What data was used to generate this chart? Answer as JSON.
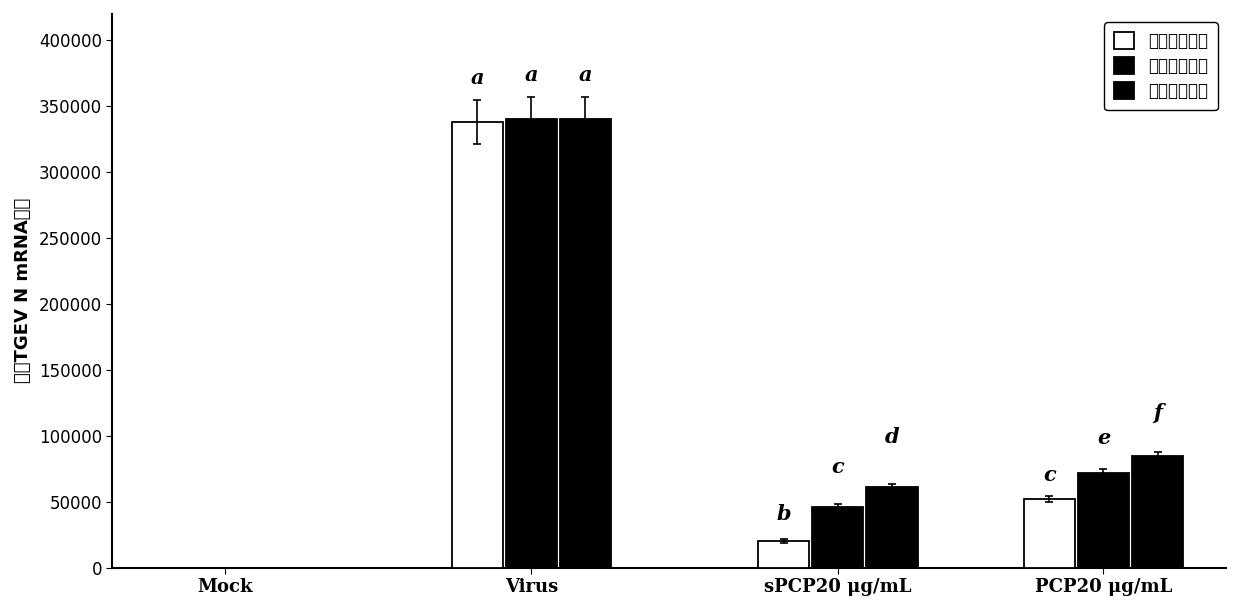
{
  "categories": [
    "Mock",
    "Virus",
    "sPCP20 µg/mL",
    "PCP20 µg/mL"
  ],
  "series": [
    {
      "name": "先给药后接毒",
      "color": "#ffffff",
      "edgecolor": "#000000",
      "values": [
        0,
        338000,
        20000,
        52000
      ],
      "errors": [
        0,
        17000,
        1500,
        2500
      ]
    },
    {
      "name": "先接毒后给药",
      "color": "#000000",
      "edgecolor": "#000000",
      "values": [
        0,
        340000,
        46000,
        72000
      ],
      "errors": [
        0,
        17000,
        2500,
        3000
      ]
    },
    {
      "name": "药毒混合感作",
      "color": "#000000",
      "edgecolor": "#000000",
      "values": [
        0,
        340000,
        61000,
        85000
      ],
      "errors": [
        0,
        17000,
        2500,
        2500
      ]
    }
  ],
  "ylim": [
    0,
    420000
  ],
  "yticks": [
    0,
    50000,
    100000,
    150000,
    200000,
    250000,
    300000,
    350000,
    400000
  ],
  "ylabel": "相对TGEV N mRNA水平",
  "bar_width": 0.25,
  "annotations": {
    "Virus": [
      "a",
      "a",
      "a"
    ],
    "sPCP20": [
      "b",
      "c",
      "d"
    ],
    "PCP20": [
      "c",
      "e",
      "f"
    ]
  },
  "figsize": [
    12.4,
    6.1
  ],
  "dpi": 100,
  "background_color": "#ffffff",
  "fontsize_ytick": 12,
  "fontsize_xlabel": 13,
  "fontsize_ylabel": 13,
  "fontsize_annotation": 15,
  "fontsize_legend": 12
}
